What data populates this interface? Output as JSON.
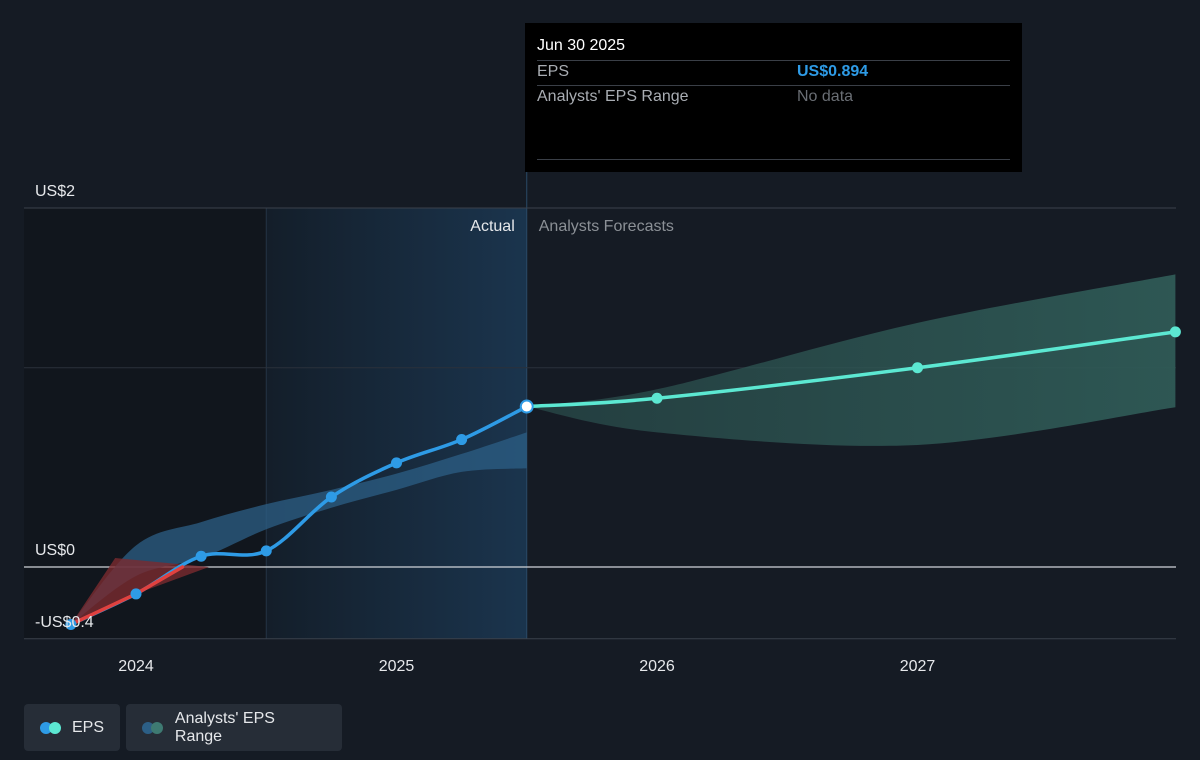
{
  "chart_data": {
    "type": "line",
    "title": "",
    "xlabel": "",
    "ylabel": "",
    "ylim": [
      -0.4,
      2
    ],
    "y_ticks": [
      {
        "value": 2,
        "label": "US$2"
      },
      {
        "value": 0,
        "label": "US$0"
      },
      {
        "value": -0.4,
        "label": "-US$0.4"
      }
    ],
    "x_ticks": [
      {
        "value": 2024,
        "label": "2024"
      },
      {
        "value": 2025,
        "label": "2025"
      },
      {
        "value": 2026,
        "label": "2026"
      },
      {
        "value": 2027,
        "label": "2027"
      }
    ],
    "series": [
      {
        "name": "EPS",
        "kind": "actual",
        "x": [
          2023.75,
          2024.0,
          2024.25,
          2024.5,
          2024.75,
          2025.0,
          2025.25,
          2025.5
        ],
        "y": [
          -0.32,
          -0.15,
          0.06,
          0.09,
          0.39,
          0.58,
          0.71,
          0.894
        ]
      },
      {
        "name": "EPS",
        "kind": "forecast",
        "x": [
          2025.5,
          2026.0,
          2027.0,
          2027.99
        ],
        "y": [
          0.894,
          0.94,
          1.11,
          1.31
        ]
      }
    ],
    "ranges": [
      {
        "name": "Analysts' EPS Range",
        "kind": "past",
        "x": [
          2023.75,
          2024.0,
          2024.25,
          2024.5,
          2024.75,
          2025.0,
          2025.25,
          2025.5
        ],
        "low": [
          -0.32,
          -0.05,
          0.05,
          0.21,
          0.33,
          0.43,
          0.53,
          0.55
        ],
        "high": [
          -0.32,
          0.12,
          0.25,
          0.35,
          0.43,
          0.52,
          0.63,
          0.75
        ]
      },
      {
        "name": "Analysts' EPS Range",
        "kind": "forecast",
        "x": [
          2025.5,
          2026.0,
          2027.0,
          2027.99
        ],
        "low": [
          0.894,
          0.75,
          0.68,
          0.89
        ],
        "high": [
          0.894,
          0.99,
          1.36,
          1.63
        ]
      }
    ],
    "actual_label": "Actual",
    "forecast_label": "Analysts Forecasts",
    "legend": {
      "placement": "bottom-left",
      "entries": [
        {
          "label": "EPS",
          "colors": [
            "#2e9be6",
            "#5ce8d2"
          ]
        },
        {
          "label": "Analysts' EPS Range",
          "colors": [
            "#2c5f86",
            "#3e7a72"
          ]
        }
      ]
    },
    "colors": {
      "eps_actual": "#2e9be6",
      "eps_negative": "#e0413f",
      "eps_forecast": "#5ce8d2",
      "range_past": "#2c5f86",
      "range_forecast": "#2f5a56",
      "range_negative": "#7a2a30",
      "highlight": "#1b3650"
    }
  },
  "tooltip": {
    "date": "Jun 30 2025",
    "rows": [
      {
        "label": "EPS",
        "value": "US$0.894",
        "color": "#2e9be6"
      },
      {
        "label": "Analysts' EPS Range",
        "value": "No data",
        "color": "#6a6e74"
      }
    ]
  }
}
